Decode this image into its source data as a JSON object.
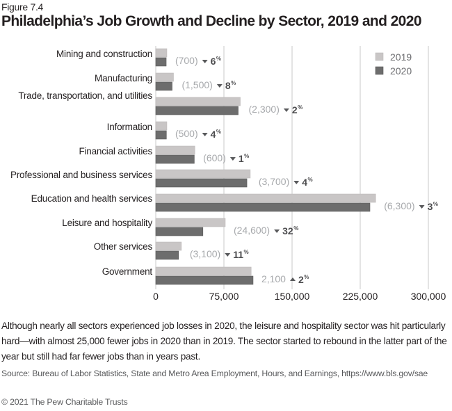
{
  "figure_label": "Figure 7.4",
  "title": "Philadelphia’s Job Growth and Decline by Sector, 2019 and 2020",
  "chart_data": {
    "type": "bar",
    "orientation": "horizontal",
    "title": "Philadelphia’s Job Growth and Decline by Sector, 2019 and 2020",
    "xlabel": "",
    "ylabel": "",
    "xlim": [
      0,
      300000
    ],
    "xticks": [
      0,
      75000,
      150000,
      225000,
      300000
    ],
    "xtick_labels": [
      "0",
      "75,000",
      "150,000",
      "225,000",
      "300,000"
    ],
    "grid": true,
    "legend_position": "top-right",
    "categories": [
      "Mining and construction",
      "Manufacturing",
      "Trade, transportation, and utilities",
      "Information",
      "Financial activities",
      "Professional and business services",
      "Education and health services",
      "Leisure and hospitality",
      "Other services",
      "Government"
    ],
    "series": [
      {
        "name": "2019",
        "color": "#c9c6c6",
        "values": [
          12200,
          19500,
          93000,
          12200,
          43000,
          104000,
          242000,
          76500,
          28200,
          105000
        ]
      },
      {
        "name": "2020",
        "color": "#6d6d6d",
        "values": [
          11500,
          18000,
          90700,
          11700,
          42400,
          100300,
          235700,
          51900,
          25100,
          107100
        ]
      }
    ],
    "annotations": [
      {
        "change": "(700)",
        "direction": "down",
        "pct": "6"
      },
      {
        "change": "(1,500)",
        "direction": "down",
        "pct": "8"
      },
      {
        "change": "(2,300)",
        "direction": "down",
        "pct": "2"
      },
      {
        "change": "(500)",
        "direction": "down",
        "pct": "4"
      },
      {
        "change": "(600)",
        "direction": "down",
        "pct": "1"
      },
      {
        "change": "(3,700)",
        "direction": "down",
        "pct": "4"
      },
      {
        "change": "(6,300)",
        "direction": "down",
        "pct": "3"
      },
      {
        "change": "(24,600)",
        "direction": "down",
        "pct": "32"
      },
      {
        "change": "(3,100)",
        "direction": "down",
        "pct": "11"
      },
      {
        "change": "2,100",
        "direction": "up",
        "pct": "2"
      }
    ],
    "pct_symbol": "%"
  },
  "caption": "Although nearly all sectors experienced job losses in 2020, the leisure and hospitality sector was hit particularly hard—with almost 25,000 fewer jobs in 2020 than in 2019. The sector started to rebound in the latter part of the year but still had far fewer jobs than in years past.",
  "source": "Source: Bureau of Labor Statistics, State and Metro Area Employment, Hours, and Earnings, https://www.bls.gov/sae",
  "copyright": "© 2021 The Pew Charitable Trusts"
}
